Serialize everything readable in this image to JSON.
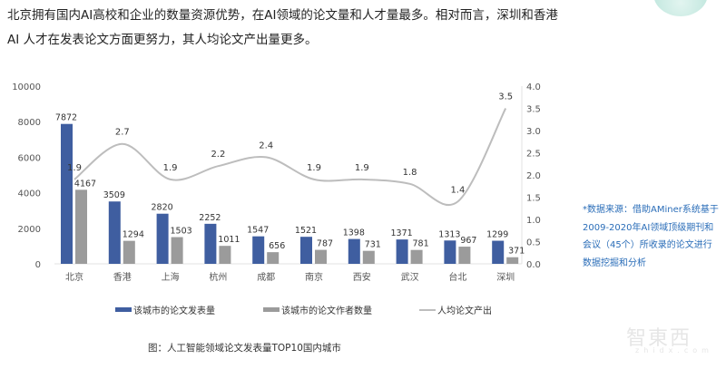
{
  "intro": {
    "line1": "北京拥有国内AI高校和企业的数量资源优势，在AI领域的论文量和人才量最多。相对而言，深圳和香港",
    "line2": "AI 人才在发表论文方面更努力，其人均论文产出量更多。"
  },
  "note": "*数据来源：借助AMiner系统基于2009-2020年AI领域顶级期刊和会议（45个）所收录的论文进行数据挖掘和分析",
  "caption": "图：人工智能领域论文发表量TOP10国内城市",
  "watermark": {
    "main": "智東西",
    "sub": "zhidx.com"
  },
  "chart_data": {
    "type": "bar",
    "categories": [
      "北京",
      "香港",
      "上海",
      "杭州",
      "成都",
      "南京",
      "西安",
      "武汉",
      "台北",
      "深圳"
    ],
    "series": [
      {
        "name": "该城市的论文发表量",
        "type": "bar",
        "axis": "left",
        "color": "#3f5ea0",
        "values": [
          7872,
          3509,
          2820,
          2252,
          1547,
          1521,
          1398,
          1371,
          1313,
          1299
        ]
      },
      {
        "name": "该城市的论文作者数量",
        "type": "bar",
        "axis": "left",
        "color": "#9b9b9b",
        "values": [
          4167,
          1294,
          1503,
          1011,
          656,
          787,
          731,
          781,
          967,
          371
        ]
      },
      {
        "name": "人均论文产出",
        "type": "line",
        "axis": "right",
        "color": "#bdbdbd",
        "values": [
          1.9,
          2.7,
          1.9,
          2.2,
          2.4,
          1.9,
          1.9,
          1.8,
          1.4,
          3.5
        ]
      }
    ],
    "left_axis": {
      "ylim": [
        0,
        10000
      ],
      "ticks": [
        "0",
        "2000",
        "4000",
        "6000",
        "8000",
        "10000"
      ]
    },
    "right_axis": {
      "ylim": [
        0,
        4.0
      ],
      "ticks": [
        "0.0",
        "0.5",
        "1.0",
        "1.5",
        "2.0",
        "2.5",
        "3.0",
        "3.5",
        "4.0"
      ]
    },
    "legend": "bottom",
    "grid": false
  }
}
